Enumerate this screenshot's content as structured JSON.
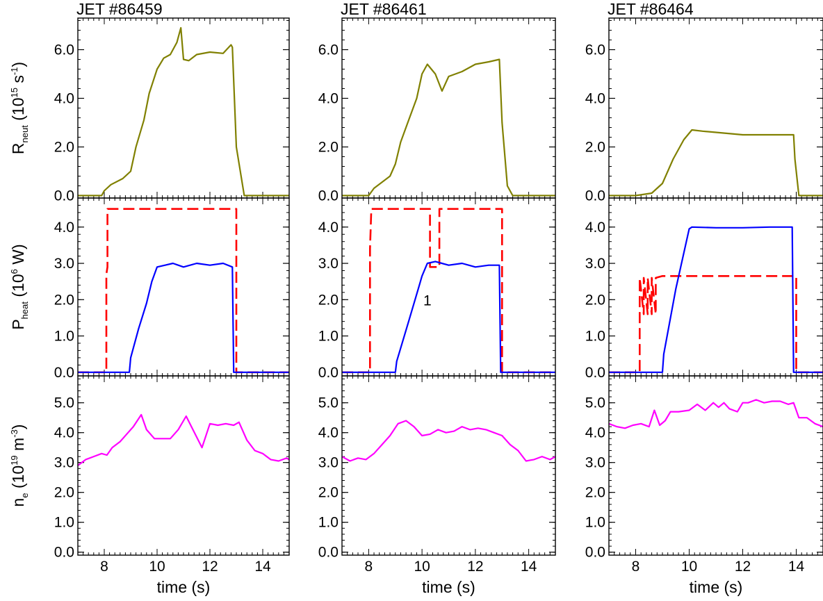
{
  "figure": {
    "shots": [
      "JET #86459",
      "JET #86461",
      "JET #86464"
    ],
    "xlabel": "time (s)",
    "xlim": [
      7,
      15
    ],
    "xticks": [
      8,
      10,
      12,
      14
    ],
    "row_labels": {
      "neut": {
        "base": "R",
        "sub": "neut",
        "unit_pre": "(10",
        "unit_exp": "15",
        "unit_mid": " s",
        "unit_exp2": "-1",
        "unit_post": ")"
      },
      "heat": {
        "base": "P",
        "sub": "heat",
        "unit_pre": "(10",
        "unit_exp": "6",
        "unit_mid": " W",
        "unit_exp2": "",
        "unit_post": ")"
      },
      "ne": {
        "base": "n",
        "sub": "e",
        "unit_pre": "(10",
        "unit_exp": "19",
        "unit_mid": " m",
        "unit_exp2": "-3",
        "unit_post": ")"
      }
    },
    "annotation": "1"
  },
  "chart_data": [
    {
      "id": "neut-86459",
      "type": "line",
      "title": "JET #86459",
      "ylim": [
        -0.1,
        7.3
      ],
      "yticks": [
        "0.0",
        "2.0",
        "4.0",
        "6.0"
      ],
      "series": [
        {
          "color": "#808000",
          "dashed": false,
          "x": [
            7.0,
            7.9,
            8.0,
            8.25,
            8.7,
            9.0,
            9.2,
            9.5,
            9.7,
            10.0,
            10.25,
            10.5,
            10.75,
            10.9,
            11.0,
            11.2,
            11.5,
            12.0,
            12.5,
            12.8,
            12.85,
            13.0,
            13.3,
            15.0
          ],
          "y": [
            0.0,
            0.0,
            0.2,
            0.45,
            0.7,
            1.0,
            2.0,
            3.1,
            4.2,
            5.2,
            5.65,
            5.8,
            6.3,
            6.9,
            5.6,
            5.55,
            5.8,
            5.9,
            5.85,
            6.2,
            6.1,
            2.0,
            0.0,
            0.0
          ]
        }
      ]
    },
    {
      "id": "neut-86461",
      "type": "line",
      "title": "JET #86461",
      "ylim": [
        -0.1,
        7.3
      ],
      "yticks": [
        "0.0",
        "2.0",
        "4.0",
        "6.0"
      ],
      "series": [
        {
          "color": "#808000",
          "dashed": false,
          "x": [
            7.0,
            8.0,
            8.2,
            8.8,
            9.0,
            9.2,
            9.5,
            9.8,
            10.0,
            10.2,
            10.5,
            10.75,
            11.0,
            11.5,
            12.0,
            12.5,
            12.9,
            13.0,
            13.2,
            13.4,
            15.0
          ],
          "y": [
            0.0,
            0.0,
            0.3,
            0.8,
            1.3,
            2.2,
            3.1,
            4.0,
            5.0,
            5.4,
            5.0,
            4.3,
            4.9,
            5.1,
            5.4,
            5.5,
            5.6,
            3.0,
            0.4,
            0.0,
            0.0
          ]
        }
      ]
    },
    {
      "id": "neut-86464",
      "type": "line",
      "title": "JET #86464",
      "ylim": [
        -0.1,
        7.3
      ],
      "yticks": [
        "0.0",
        "2.0",
        "4.0",
        "6.0"
      ],
      "series": [
        {
          "color": "#808000",
          "dashed": false,
          "x": [
            7.0,
            8.0,
            8.6,
            9.0,
            9.4,
            9.8,
            10.1,
            10.5,
            11.0,
            12.0,
            13.0,
            13.9,
            13.95,
            14.1,
            15.0
          ],
          "y": [
            0.0,
            0.0,
            0.1,
            0.5,
            1.5,
            2.3,
            2.7,
            2.65,
            2.6,
            2.5,
            2.5,
            2.5,
            1.5,
            0.0,
            0.0
          ]
        }
      ]
    },
    {
      "id": "heat-86459",
      "type": "line",
      "ylim": [
        -0.1,
        4.8
      ],
      "yticks": [
        "0.0",
        "1.0",
        "2.0",
        "3.0",
        "4.0"
      ],
      "series": [
        {
          "color": "#ff0000",
          "dashed": true,
          "x": [
            7.0,
            8.08,
            8.08,
            8.12,
            8.12,
            8.2,
            13.0,
            13.0,
            15.0
          ],
          "y": [
            0.0,
            0.0,
            2.7,
            2.9,
            4.5,
            4.5,
            4.5,
            0.0,
            0.0
          ]
        },
        {
          "color": "#0000ff",
          "dashed": false,
          "x": [
            7.0,
            8.95,
            9.0,
            9.3,
            9.6,
            9.8,
            10.0,
            10.3,
            10.6,
            11.0,
            11.5,
            12.0,
            12.5,
            12.85,
            12.9,
            15.0
          ],
          "y": [
            0.0,
            0.0,
            0.4,
            1.2,
            1.9,
            2.5,
            2.9,
            2.95,
            3.0,
            2.9,
            3.0,
            2.95,
            3.0,
            2.9,
            0.0,
            0.0
          ]
        }
      ]
    },
    {
      "id": "heat-86461",
      "type": "line",
      "ylim": [
        -0.1,
        4.8
      ],
      "yticks": [
        "0.0",
        "1.0",
        "2.0",
        "3.0",
        "4.0"
      ],
      "series": [
        {
          "color": "#ff0000",
          "dashed": true,
          "x": [
            7.0,
            8.05,
            8.05,
            8.1,
            10.3,
            10.3,
            10.65,
            10.65,
            13.0,
            13.0,
            15.0
          ],
          "y": [
            0.0,
            0.0,
            3.4,
            4.5,
            4.5,
            2.9,
            2.9,
            4.5,
            4.5,
            0.0,
            0.0
          ]
        },
        {
          "color": "#0000ff",
          "dashed": false,
          "x": [
            7.0,
            9.0,
            9.05,
            9.5,
            9.9,
            10.0,
            10.2,
            10.5,
            11.0,
            11.5,
            12.0,
            12.5,
            12.9,
            12.95,
            15.0
          ],
          "y": [
            0.0,
            0.0,
            0.3,
            1.4,
            2.4,
            2.65,
            3.0,
            3.05,
            2.95,
            3.0,
            2.9,
            2.95,
            2.95,
            0.0,
            0.0
          ]
        }
      ]
    },
    {
      "id": "heat-86464",
      "type": "line",
      "ylim": [
        -0.1,
        4.8
      ],
      "yticks": [
        "0.0",
        "1.0",
        "2.0",
        "3.0",
        "4.0"
      ],
      "series": [
        {
          "color": "#ff0000",
          "dashed": true,
          "x": [
            7.0,
            8.15,
            8.15,
            8.3,
            8.3,
            8.45,
            8.45,
            8.6,
            8.6,
            8.75,
            8.75,
            9.0,
            13.0,
            14.0,
            14.0,
            15.0
          ],
          "y": [
            0.0,
            0.0,
            2.6,
            1.6,
            2.6,
            1.6,
            2.6,
            1.6,
            2.6,
            1.6,
            2.6,
            2.65,
            2.65,
            2.65,
            0.0,
            0.0
          ]
        },
        {
          "color": "#0000ff",
          "dashed": false,
          "x": [
            7.0,
            9.0,
            9.05,
            9.5,
            10.0,
            10.1,
            11.0,
            12.0,
            13.0,
            13.85,
            13.9,
            15.0
          ],
          "y": [
            0.0,
            0.0,
            0.5,
            2.3,
            3.95,
            4.0,
            3.98,
            3.98,
            4.0,
            4.0,
            0.0,
            0.0
          ]
        }
      ]
    },
    {
      "id": "ne-86459",
      "type": "line",
      "ylim": [
        -0.1,
        5.9
      ],
      "yticks": [
        "0.0",
        "1.0",
        "2.0",
        "3.0",
        "4.0",
        "5.0"
      ],
      "series": [
        {
          "color": "#ff00ff",
          "dashed": false,
          "x": [
            7.0,
            7.3,
            7.6,
            7.9,
            8.1,
            8.3,
            8.6,
            8.9,
            9.1,
            9.4,
            9.6,
            9.9,
            10.2,
            10.5,
            10.8,
            11.1,
            11.3,
            11.7,
            12.0,
            12.3,
            12.6,
            12.9,
            13.1,
            13.4,
            13.7,
            14.0,
            14.3,
            14.6,
            14.9,
            15.0
          ],
          "y": [
            2.9,
            3.1,
            3.2,
            3.3,
            3.25,
            3.5,
            3.7,
            4.0,
            4.2,
            4.6,
            4.1,
            3.8,
            3.8,
            3.8,
            4.1,
            4.55,
            4.2,
            3.5,
            4.3,
            4.25,
            4.3,
            4.25,
            4.35,
            3.75,
            3.4,
            3.3,
            3.1,
            3.05,
            3.15,
            3.1
          ]
        }
      ]
    },
    {
      "id": "ne-86461",
      "type": "line",
      "ylim": [
        -0.1,
        5.9
      ],
      "yticks": [
        "0.0",
        "1.0",
        "2.0",
        "3.0",
        "4.0",
        "5.0"
      ],
      "series": [
        {
          "color": "#ff00ff",
          "dashed": false,
          "x": [
            7.0,
            7.3,
            7.6,
            7.9,
            8.2,
            8.5,
            8.8,
            9.1,
            9.4,
            9.7,
            10.0,
            10.3,
            10.6,
            10.9,
            11.2,
            11.5,
            11.8,
            12.1,
            12.4,
            12.7,
            13.0,
            13.3,
            13.6,
            13.9,
            14.2,
            14.5,
            14.8,
            15.0
          ],
          "y": [
            3.2,
            3.05,
            3.15,
            3.1,
            3.3,
            3.6,
            3.9,
            4.3,
            4.4,
            4.2,
            3.9,
            3.95,
            4.1,
            4.0,
            4.05,
            4.2,
            4.1,
            4.15,
            4.1,
            4.0,
            3.9,
            3.6,
            3.4,
            3.05,
            3.1,
            3.2,
            3.1,
            3.2
          ]
        }
      ]
    },
    {
      "id": "ne-86464",
      "type": "line",
      "ylim": [
        -0.1,
        5.9
      ],
      "yticks": [
        "0.0",
        "1.0",
        "2.0",
        "3.0",
        "4.0",
        "5.0"
      ],
      "series": [
        {
          "color": "#ff00ff",
          "dashed": false,
          "x": [
            7.0,
            7.3,
            7.6,
            7.9,
            8.2,
            8.5,
            8.7,
            8.9,
            9.1,
            9.3,
            9.6,
            10.0,
            10.3,
            10.6,
            10.9,
            11.1,
            11.3,
            11.5,
            11.8,
            12.0,
            12.2,
            12.5,
            12.8,
            13.1,
            13.4,
            13.7,
            13.9,
            14.1,
            14.4,
            14.7,
            15.0
          ],
          "y": [
            4.3,
            4.2,
            4.15,
            4.25,
            4.3,
            4.2,
            4.75,
            4.25,
            4.4,
            4.7,
            4.7,
            4.75,
            4.95,
            4.75,
            5.0,
            4.85,
            5.0,
            4.8,
            4.7,
            5.0,
            5.0,
            5.1,
            5.0,
            5.05,
            5.05,
            4.95,
            5.0,
            4.5,
            4.5,
            4.3,
            4.2
          ]
        }
      ]
    }
  ]
}
